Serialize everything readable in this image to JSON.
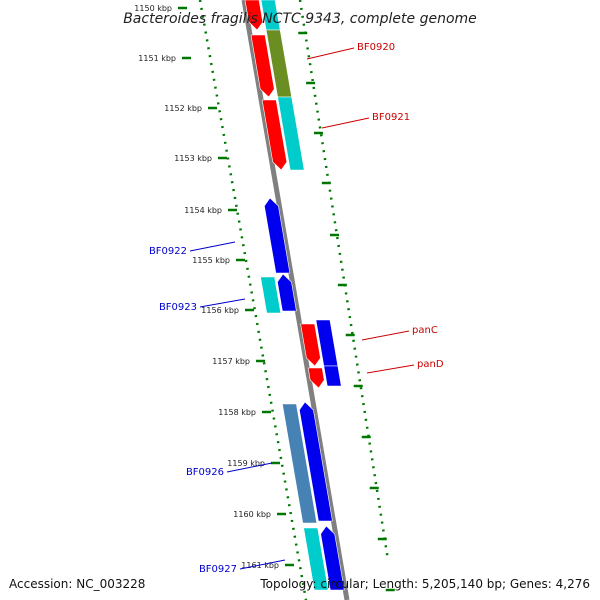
{
  "title": "Bacteroides fragilis NCTC 9343, complete genome",
  "accession": "Accession: NC_003228",
  "topology": "Topology: circular; Length: 5,205,140 bp; Genes: 4,276",
  "tick_labels": [
    "1150 kbp",
    "1151 kbp",
    "1152 kbp",
    "1153 kbp",
    "1154 kbp",
    "1155 kbp",
    "1156 kbp",
    "1157 kbp",
    "1158 kbp",
    "1159 kbp",
    "1160 kbp",
    "1161 kbp"
  ],
  "gene_labels": [
    {
      "text": "BF0920",
      "color": "#cc0000"
    },
    {
      "text": "BF0921",
      "color": "#cc0000"
    },
    {
      "text": "BF0922",
      "color": "#0000cc"
    },
    {
      "text": "BF0923",
      "color": "#0000cc"
    },
    {
      "text": "panC",
      "color": "#cc0000"
    },
    {
      "text": "panD",
      "color": "#cc0000"
    },
    {
      "text": "BF0926",
      "color": "#0000cc"
    },
    {
      "text": "BF0927",
      "color": "#0000cc"
    }
  ],
  "colors": {
    "forward_cds": "#ff0000",
    "reverse_cds": "#0000ee",
    "cog_cyan": "#00cccc",
    "cog_olive": "#6b8e23",
    "cog_steelblue": "#4682b4",
    "tick_green": "#007700",
    "backbone": "#888888"
  }
}
